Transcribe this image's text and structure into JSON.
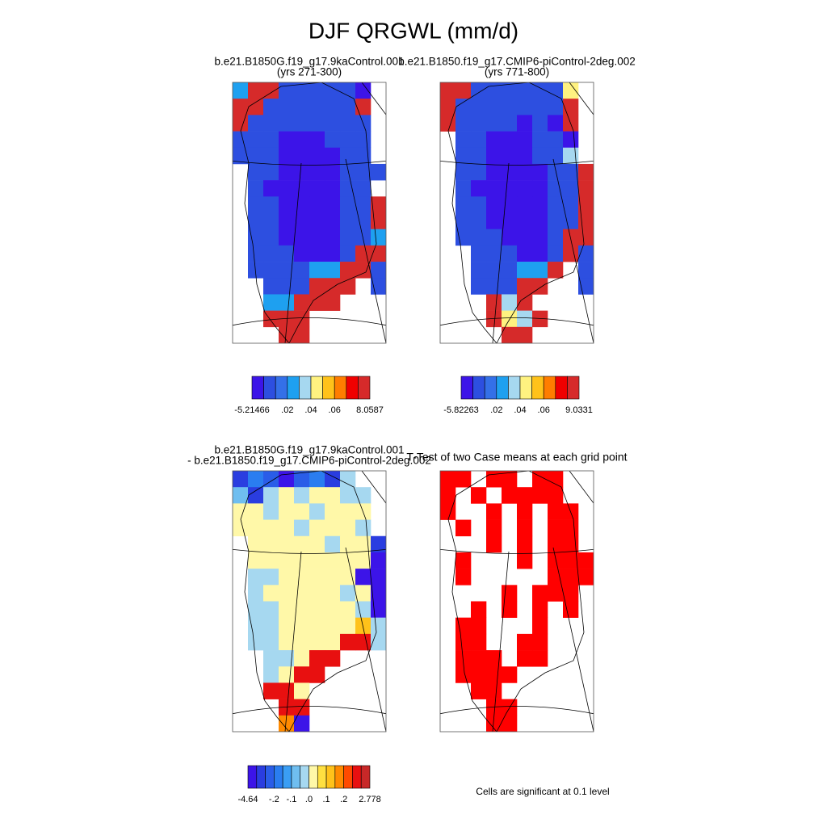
{
  "title": "DJF QRGWL (mm/d)",
  "panels": [
    {
      "title": [
        "b.e21.B1850G.f19_g17.9kaControl.001",
        "(yrs 271-300)"
      ],
      "colorbar": {
        "colors": [
          "#3c14e8",
          "#2d4fe0",
          "#3470e8",
          "#1ea0f0",
          "#a6d8f0",
          "#fff280",
          "#ffc21a",
          "#ff7d00",
          "#f00000",
          "#d62a2a"
        ],
        "labels": [
          "-5.21466",
          null,
          null,
          ".02",
          null,
          ".04",
          null,
          ".06",
          null,
          null,
          "8.0587"
        ]
      },
      "cells": [
        [
          3,
          9,
          9,
          1,
          1,
          1,
          1,
          1,
          0,
          null
        ],
        [
          9,
          9,
          1,
          1,
          1,
          1,
          1,
          1,
          9,
          null
        ],
        [
          9,
          1,
          1,
          1,
          1,
          1,
          1,
          1,
          1,
          null
        ],
        [
          1,
          1,
          1,
          0,
          0,
          0,
          1,
          1,
          1,
          null
        ],
        [
          1,
          1,
          1,
          0,
          0,
          0,
          0,
          1,
          1,
          null
        ],
        [
          null,
          1,
          1,
          0,
          0,
          0,
          0,
          1,
          1,
          1
        ],
        [
          null,
          1,
          0,
          0,
          0,
          0,
          0,
          1,
          1,
          null
        ],
        [
          null,
          1,
          1,
          0,
          0,
          0,
          0,
          1,
          1,
          9
        ],
        [
          null,
          1,
          1,
          0,
          0,
          0,
          0,
          1,
          1,
          9
        ],
        [
          null,
          1,
          1,
          0,
          0,
          0,
          0,
          1,
          1,
          3
        ],
        [
          null,
          1,
          1,
          1,
          0,
          0,
          0,
          1,
          9,
          9
        ],
        [
          null,
          1,
          1,
          1,
          1,
          3,
          3,
          9,
          9,
          1
        ],
        [
          null,
          null,
          1,
          1,
          1,
          9,
          9,
          9,
          null,
          1
        ],
        [
          null,
          null,
          3,
          3,
          9,
          9,
          9,
          null,
          null,
          null
        ],
        [
          null,
          null,
          9,
          9,
          9,
          null,
          null,
          null,
          null,
          null
        ],
        [
          null,
          null,
          null,
          9,
          9,
          null,
          null,
          null,
          null,
          null
        ]
      ]
    },
    {
      "title": [
        "b.e21.B1850.f19_g17.CMIP6-piControl-2deg.002",
        "(yrs 771-800)"
      ],
      "colorbar": {
        "colors": [
          "#3c14e8",
          "#2d4fe0",
          "#3470e8",
          "#1ea0f0",
          "#a6d8f0",
          "#fff280",
          "#ffc21a",
          "#ff7d00",
          "#f00000",
          "#d62a2a"
        ],
        "labels": [
          "-5.82263",
          null,
          null,
          ".02",
          null,
          ".04",
          null,
          ".06",
          null,
          null,
          "9.0331"
        ]
      },
      "cells": [
        [
          9,
          9,
          1,
          1,
          1,
          1,
          1,
          1,
          5,
          null
        ],
        [
          9,
          1,
          1,
          1,
          1,
          1,
          1,
          1,
          9,
          null
        ],
        [
          9,
          1,
          1,
          1,
          1,
          0,
          1,
          0,
          9,
          null
        ],
        [
          null,
          1,
          1,
          0,
          0,
          0,
          1,
          1,
          0,
          null
        ],
        [
          null,
          1,
          1,
          0,
          0,
          0,
          1,
          1,
          4,
          null
        ],
        [
          null,
          1,
          1,
          0,
          0,
          0,
          0,
          1,
          1,
          9
        ],
        [
          null,
          1,
          0,
          0,
          0,
          0,
          0,
          1,
          1,
          9
        ],
        [
          null,
          1,
          1,
          0,
          0,
          0,
          0,
          1,
          1,
          9
        ],
        [
          null,
          1,
          1,
          0,
          0,
          0,
          0,
          1,
          1,
          9
        ],
        [
          null,
          1,
          1,
          1,
          0,
          0,
          0,
          1,
          9,
          9
        ],
        [
          null,
          null,
          1,
          1,
          1,
          0,
          0,
          1,
          9,
          1
        ],
        [
          null,
          null,
          1,
          1,
          1,
          3,
          3,
          9,
          null,
          1
        ],
        [
          null,
          null,
          1,
          1,
          1,
          9,
          9,
          null,
          null,
          1
        ],
        [
          null,
          null,
          null,
          9,
          4,
          9,
          null,
          null,
          null,
          null
        ],
        [
          null,
          null,
          null,
          9,
          5,
          4,
          9,
          null,
          null,
          null
        ],
        [
          null,
          null,
          null,
          null,
          9,
          9,
          null,
          null,
          null,
          null
        ]
      ]
    },
    {
      "title": [
        "b.e21.B1850G.f19_g17.9kaControl.001",
        "- b.e21.B1850.f19_g17.CMIP6-piControl-2deg.002"
      ],
      "colorbar": {
        "colors": [
          "#3c14e8",
          "#2a3de0",
          "#2a5de8",
          "#2a7df0",
          "#3a9ef4",
          "#6fbef0",
          "#a6d8f0",
          "#fff8a8",
          "#ffe040",
          "#ffc21a",
          "#ff8a00",
          "#ff4a00",
          "#e81010",
          "#c82828"
        ],
        "labels": [
          "-4.64",
          null,
          null,
          "-.2",
          null,
          "-.1",
          null,
          ".0",
          null,
          ".1",
          null,
          ".2",
          null,
          null,
          "2.778"
        ]
      },
      "cells": [
        [
          1,
          3,
          2,
          0,
          2,
          3,
          1,
          6,
          null,
          null
        ],
        [
          5,
          1,
          6,
          7,
          6,
          7,
          7,
          6,
          6,
          null
        ],
        [
          7,
          7,
          6,
          7,
          7,
          6,
          7,
          7,
          7,
          null
        ],
        [
          7,
          7,
          7,
          7,
          6,
          7,
          7,
          7,
          6,
          null
        ],
        [
          null,
          7,
          7,
          7,
          7,
          7,
          6,
          7,
          7,
          1
        ],
        [
          null,
          7,
          7,
          7,
          7,
          7,
          7,
          7,
          7,
          0
        ],
        [
          null,
          6,
          6,
          7,
          7,
          7,
          7,
          7,
          0,
          0
        ],
        [
          null,
          6,
          7,
          7,
          7,
          7,
          7,
          6,
          7,
          0
        ],
        [
          null,
          6,
          6,
          7,
          7,
          7,
          7,
          7,
          6,
          0
        ],
        [
          null,
          6,
          6,
          7,
          7,
          7,
          7,
          7,
          9,
          6
        ],
        [
          null,
          6,
          6,
          7,
          7,
          7,
          7,
          12,
          12,
          6
        ],
        [
          null,
          null,
          6,
          6,
          7,
          12,
          12,
          null,
          null,
          null
        ],
        [
          null,
          null,
          6,
          7,
          12,
          12,
          null,
          null,
          null,
          null
        ],
        [
          null,
          null,
          12,
          12,
          7,
          null,
          null,
          null,
          null,
          null
        ],
        [
          null,
          null,
          null,
          12,
          12,
          null,
          null,
          null,
          null,
          null
        ],
        [
          null,
          null,
          null,
          10,
          0,
          null,
          null,
          null,
          null,
          null
        ]
      ]
    },
    {
      "title": [
        "T-Test of two Case means at each grid point"
      ],
      "colorbar": {
        "colors": [
          "#ff0000"
        ]
      },
      "cells": [
        [
          0,
          0,
          null,
          0,
          0,
          null,
          0,
          0,
          null,
          null
        ],
        [
          0,
          null,
          0,
          null,
          0,
          0,
          0,
          0,
          null,
          null
        ],
        [
          0,
          null,
          null,
          0,
          null,
          0,
          null,
          0,
          0,
          null
        ],
        [
          null,
          0,
          null,
          0,
          null,
          0,
          null,
          0,
          0,
          null
        ],
        [
          null,
          null,
          null,
          0,
          null,
          0,
          null,
          0,
          0,
          null
        ],
        [
          null,
          0,
          null,
          null,
          null,
          0,
          null,
          0,
          0,
          0
        ],
        [
          null,
          0,
          null,
          null,
          null,
          null,
          null,
          0,
          0,
          0
        ],
        [
          null,
          null,
          null,
          null,
          0,
          null,
          0,
          0,
          0,
          null
        ],
        [
          null,
          null,
          0,
          null,
          0,
          null,
          0,
          null,
          0,
          null
        ],
        [
          null,
          0,
          0,
          null,
          null,
          null,
          0,
          null,
          null,
          null
        ],
        [
          null,
          0,
          0,
          null,
          null,
          0,
          0,
          null,
          null,
          null
        ],
        [
          null,
          0,
          0,
          0,
          null,
          0,
          0,
          null,
          null,
          null
        ],
        [
          null,
          0,
          0,
          0,
          0,
          null,
          null,
          null,
          null,
          null
        ],
        [
          null,
          null,
          0,
          0,
          null,
          null,
          null,
          null,
          null,
          null
        ],
        [
          null,
          null,
          null,
          0,
          0,
          null,
          null,
          null,
          null,
          null
        ],
        [
          null,
          null,
          null,
          0,
          0,
          null,
          null,
          null,
          null,
          null
        ]
      ]
    }
  ],
  "note": "Cells are significant at 0.1 level"
}
